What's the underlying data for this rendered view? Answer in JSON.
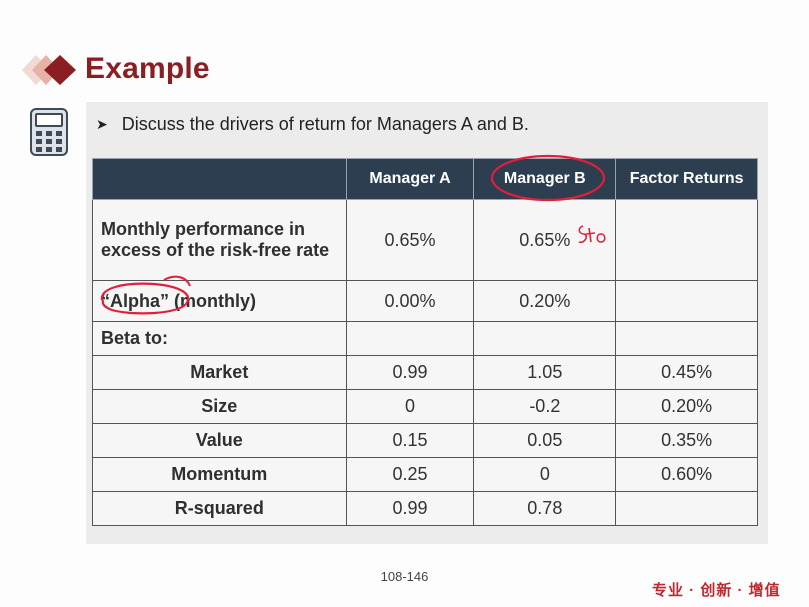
{
  "header": {
    "title": "Example"
  },
  "icons": {
    "title_mark": "diamond-icon",
    "sidebar": "calculator-icon"
  },
  "bullet": {
    "text": "Discuss the drivers of return for Managers A and B."
  },
  "table": {
    "headers": [
      "",
      "Manager A",
      "Manager B",
      "Factor Returns"
    ],
    "rows": [
      {
        "label": "Monthly performance in excess of the risk-free rate",
        "a": "0.65%",
        "b": "0.65%",
        "factor": ""
      },
      {
        "label": "“Alpha” (monthly)",
        "a": "0.00%",
        "b": "0.20%",
        "factor": ""
      },
      {
        "label": "Beta to:",
        "a": "",
        "b": "",
        "factor": ""
      },
      {
        "label": "Market",
        "a": "0.99",
        "b": "1.05",
        "factor": "0.45%"
      },
      {
        "label": "Size",
        "a": "0",
        "b": "-0.2",
        "factor": "0.20%"
      },
      {
        "label": "Value",
        "a": "0.15",
        "b": "0.05",
        "factor": "0.35%"
      },
      {
        "label": "Momentum",
        "a": "0.25",
        "b": "0",
        "factor": "0.60%"
      },
      {
        "label": "R-squared",
        "a": "0.99",
        "b": "0.78",
        "factor": ""
      }
    ]
  },
  "footer": {
    "page": "108-146",
    "slogan": "专业 · 创新 · 增值"
  },
  "colors": {
    "accent": "#8b1e23",
    "header_bg": "#2c3e50",
    "ink": "#e0203a"
  }
}
